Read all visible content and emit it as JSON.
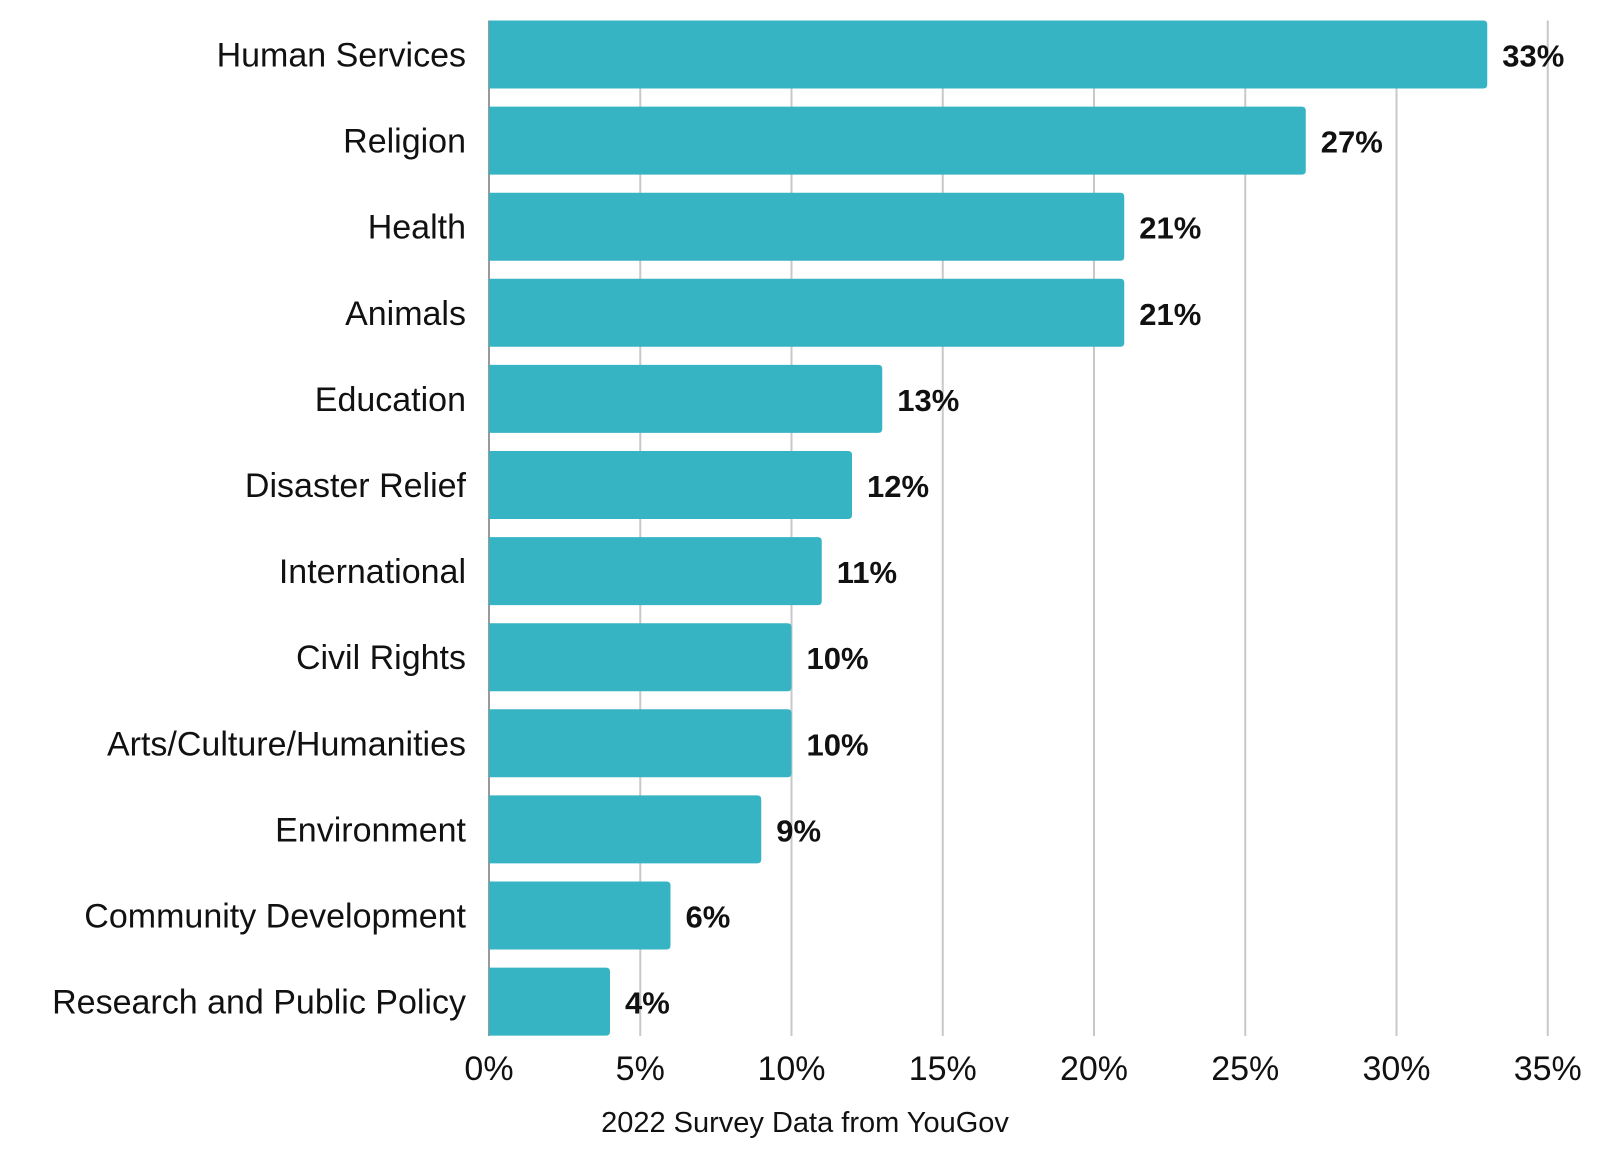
{
  "chart_data": {
    "type": "bar",
    "orientation": "horizontal",
    "categories": [
      "Human Services",
      "Religion",
      "Health",
      "Animals",
      "Education",
      "Disaster Relief",
      "International",
      "Civil Rights",
      "Arts/Culture/Humanities",
      "Environment",
      "Community Development",
      "Research and Public Policy"
    ],
    "values": [
      33,
      27,
      21,
      21,
      13,
      12,
      11,
      10,
      10,
      9,
      6,
      4
    ],
    "value_labels": [
      "33%",
      "27%",
      "21%",
      "21%",
      "13%",
      "12%",
      "11%",
      "10%",
      "10%",
      "9%",
      "6%",
      "4%"
    ],
    "xlim": [
      0,
      35
    ],
    "xticks": [
      0,
      5,
      10,
      15,
      20,
      25,
      30,
      35
    ],
    "xtick_labels": [
      "0%",
      "5%",
      "10%",
      "15%",
      "20%",
      "25%",
      "30%",
      "35%"
    ],
    "xlabel": "2022 Survey Data from YouGov",
    "ylabel": "",
    "title": "",
    "grid": "vertical",
    "bar_color": "#36b4c4",
    "grid_color": "#c8c8c8"
  }
}
